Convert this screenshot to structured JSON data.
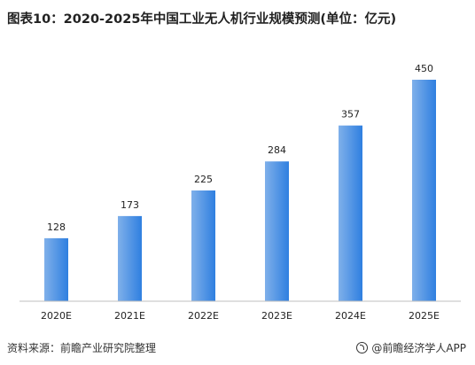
{
  "title": "图表10：2020-2025年中国工业无人机行业规模预测(单位：亿元)",
  "source": "资料来源：前瞻产业研究院整理",
  "brand": "@前瞻经济学人APP",
  "brand_icon": "brand-logo-icon",
  "colors": {
    "bar_start": "#7fb0ea",
    "bar_end": "#2f7fe0",
    "axis": "#bfbfbf"
  },
  "chart_data": {
    "type": "bar",
    "title": "图表10：2020-2025年中国工业无人机行业规模预测(单位：亿元)",
    "categories": [
      "2020E",
      "2021E",
      "2022E",
      "2023E",
      "2024E",
      "2025E"
    ],
    "values": [
      128,
      173,
      225,
      284,
      357,
      450
    ],
    "xlabel": "",
    "ylabel": "",
    "ylim": [
      0,
      450
    ],
    "grid": false,
    "legend": "none"
  }
}
